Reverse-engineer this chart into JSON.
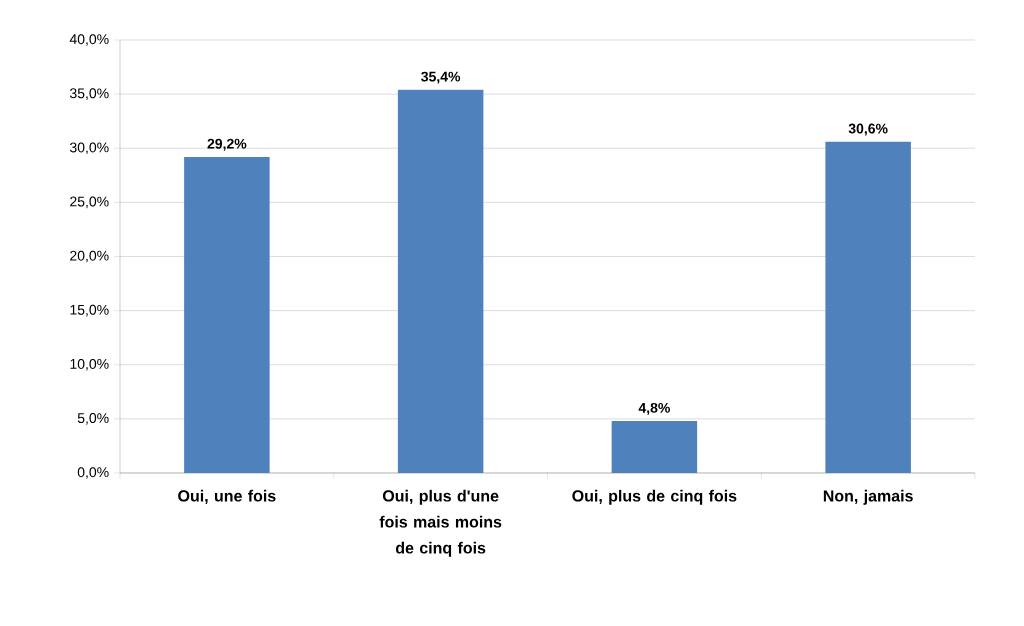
{
  "chart_data": {
    "type": "bar",
    "categories": [
      "Oui, une fois",
      "Oui, plus d'une fois mais moins de cinq fois",
      "Oui, plus de cinq fois",
      "Non, jamais"
    ],
    "values": [
      29.2,
      35.4,
      4.8,
      30.6
    ],
    "value_labels": [
      "29,2%",
      "35,4%",
      "4,8%",
      "30,6%"
    ],
    "color": "#4f81bd",
    "ylim": [
      0,
      40
    ],
    "yticks": [
      {
        "value": 0,
        "label": "0,0%"
      },
      {
        "value": 5,
        "label": "5,0%"
      },
      {
        "value": 10,
        "label": "10,0%"
      },
      {
        "value": 15,
        "label": "15,0%"
      },
      {
        "value": 20,
        "label": "20,0%"
      },
      {
        "value": 25,
        "label": "25,0%"
      },
      {
        "value": 30,
        "label": "30,0%"
      },
      {
        "value": 35,
        "label": "35,0%"
      },
      {
        "value": 40,
        "label": "40,0%"
      }
    ],
    "grid": "y"
  }
}
